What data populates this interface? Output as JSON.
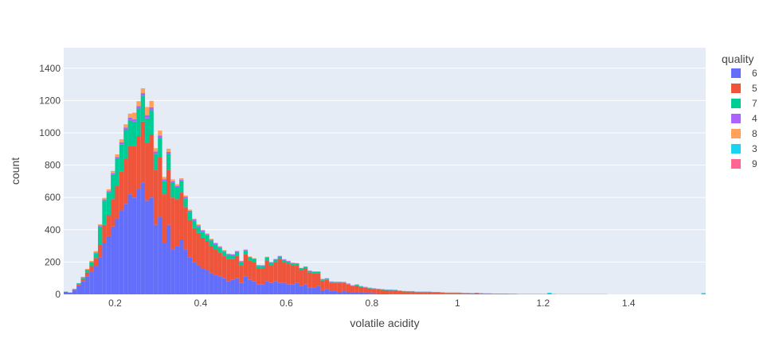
{
  "chart_data": {
    "type": "bar",
    "barmode": "stack",
    "xlabel": "volatile acidity",
    "ylabel": "count",
    "xlim": [
      0.08,
      1.58
    ],
    "ylim": [
      0,
      1527
    ],
    "bin_width": 0.01,
    "x_ticks": [
      0.2,
      0.4,
      0.6,
      0.8,
      1,
      1.2,
      1.4
    ],
    "x_tick_labels": [
      "0.2",
      "0.4",
      "0.6",
      "0.8",
      "1",
      "1.2",
      "1.4"
    ],
    "y_ticks": [
      0,
      200,
      400,
      600,
      800,
      1000,
      1200,
      1400
    ],
    "y_tick_labels": [
      "0",
      "200",
      "400",
      "600",
      "800",
      "1000",
      "1200",
      "1400"
    ],
    "grid": true,
    "plot_background": "#e5ecf6",
    "legend": {
      "title": "quality",
      "placement": "right"
    },
    "x": [
      0.08,
      0.09,
      0.1,
      0.11,
      0.12,
      0.13,
      0.14,
      0.15,
      0.16,
      0.17,
      0.18,
      0.19,
      0.2,
      0.21,
      0.22,
      0.23,
      0.24,
      0.25,
      0.26,
      0.27,
      0.28,
      0.29,
      0.3,
      0.31,
      0.32,
      0.33,
      0.34,
      0.35,
      0.36,
      0.37,
      0.38,
      0.39,
      0.4,
      0.41,
      0.42,
      0.43,
      0.44,
      0.45,
      0.46,
      0.47,
      0.48,
      0.49,
      0.5,
      0.51,
      0.52,
      0.53,
      0.54,
      0.55,
      0.56,
      0.57,
      0.58,
      0.59,
      0.6,
      0.61,
      0.62,
      0.63,
      0.64,
      0.65,
      0.66,
      0.67,
      0.68,
      0.69,
      0.7,
      0.71,
      0.72,
      0.73,
      0.74,
      0.75,
      0.76,
      0.77,
      0.78,
      0.79,
      0.8,
      0.81,
      0.82,
      0.83,
      0.84,
      0.85,
      0.86,
      0.87,
      0.88,
      0.89,
      0.9,
      0.91,
      0.92,
      0.93,
      0.94,
      0.95,
      0.96,
      0.97,
      0.98,
      0.99,
      1.0,
      1.01,
      1.02,
      1.03,
      1.04,
      1.05,
      1.06,
      1.07,
      1.08,
      1.09,
      1.1,
      1.11,
      1.12,
      1.13,
      1.14,
      1.15,
      1.16,
      1.17,
      1.18,
      1.19,
      1.2,
      1.21,
      1.22,
      1.23,
      1.24,
      1.25,
      1.26,
      1.27,
      1.28,
      1.29,
      1.3,
      1.31,
      1.32,
      1.33,
      1.34,
      1.35,
      1.36,
      1.37,
      1.38,
      1.39,
      1.4,
      1.41,
      1.42,
      1.43,
      1.44,
      1.45,
      1.46,
      1.47,
      1.48,
      1.49,
      1.5,
      1.51,
      1.52,
      1.53,
      1.54,
      1.55,
      1.56,
      1.57
    ],
    "series": [
      {
        "name": "6",
        "color": "#636efa",
        "values": [
          15,
          10,
          28,
          55,
          80,
          110,
          140,
          175,
          230,
          320,
          360,
          420,
          470,
          520,
          560,
          620,
          600,
          650,
          690,
          580,
          600,
          430,
          480,
          320,
          430,
          280,
          300,
          340,
          280,
          230,
          200,
          180,
          160,
          150,
          130,
          120,
          110,
          100,
          80,
          90,
          100,
          70,
          110,
          90,
          80,
          60,
          60,
          80,
          70,
          80,
          70,
          70,
          60,
          60,
          70,
          50,
          60,
          40,
          40,
          50,
          25,
          30,
          20,
          20,
          15,
          20,
          15,
          10,
          15,
          10,
          10,
          8,
          8,
          5,
          5,
          5,
          4,
          4,
          3,
          3,
          3,
          3,
          2,
          2,
          2,
          2,
          2,
          2,
          1,
          1,
          1,
          1,
          1,
          1,
          1,
          0,
          0,
          1,
          0,
          0,
          0,
          0,
          0,
          0,
          0,
          0,
          0,
          0,
          0,
          0,
          0,
          0,
          0,
          0,
          0,
          0,
          0,
          0,
          0,
          0,
          0,
          0,
          0,
          0,
          0,
          0,
          0,
          0,
          0,
          0,
          0,
          0,
          0,
          0,
          0,
          0,
          0,
          0,
          0,
          0,
          0,
          0,
          0,
          0,
          0,
          0,
          0,
          0,
          0,
          0
        ]
      },
      {
        "name": "5",
        "color": "#ef553b",
        "values": [
          1,
          1,
          3,
          8,
          15,
          25,
          35,
          50,
          80,
          110,
          130,
          170,
          200,
          240,
          280,
          300,
          320,
          330,
          380,
          360,
          390,
          340,
          370,
          300,
          340,
          320,
          290,
          290,
          260,
          230,
          210,
          200,
          190,
          180,
          170,
          160,
          150,
          140,
          140,
          130,
          140,
          110,
          140,
          120,
          120,
          100,
          100,
          130,
          110,
          120,
          150,
          130,
          130,
          120,
          110,
          100,
          100,
          95,
          90,
          80,
          60,
          60,
          50,
          50,
          55,
          50,
          45,
          40,
          40,
          35,
          30,
          28,
          25,
          25,
          22,
          20,
          20,
          20,
          18,
          15,
          14,
          14,
          12,
          12,
          12,
          12,
          10,
          10,
          10,
          8,
          8,
          8,
          8,
          6,
          6,
          6,
          8,
          5,
          4,
          4,
          3,
          3,
          3,
          3,
          2,
          2,
          2,
          2,
          2,
          2,
          2,
          2,
          2,
          2,
          2,
          1,
          1,
          1,
          1,
          1,
          1,
          1,
          1,
          1,
          1,
          1,
          1,
          0,
          0,
          0,
          0,
          0,
          0,
          0,
          0,
          0,
          0,
          0,
          0,
          0,
          0,
          0,
          0,
          0,
          0,
          0,
          0,
          0,
          0,
          0
        ]
      },
      {
        "name": "7",
        "color": "#00cc96",
        "values": [
          1,
          1,
          2,
          5,
          10,
          15,
          22,
          30,
          110,
          150,
          140,
          150,
          170,
          170,
          180,
          160,
          150,
          170,
          160,
          150,
          150,
          100,
          120,
          80,
          100,
          90,
          70,
          70,
          55,
          50,
          45,
          40,
          38,
          35,
          33,
          30,
          28,
          25,
          24,
          22,
          22,
          20,
          20,
          18,
          18,
          16,
          15,
          17,
          15,
          14,
          13,
          12,
          12,
          11,
          10,
          10,
          9,
          9,
          8,
          8,
          7,
          7,
          6,
          6,
          6,
          5,
          5,
          4,
          4,
          4,
          4,
          3,
          3,
          3,
          3,
          3,
          3,
          3,
          2,
          2,
          2,
          2,
          2,
          2,
          2,
          2,
          2,
          2,
          1,
          1,
          1,
          1,
          1,
          1,
          1,
          1,
          1,
          1,
          1,
          1,
          1,
          1,
          1,
          1,
          1,
          1,
          0,
          0,
          0,
          0,
          0,
          0,
          0,
          0,
          0,
          0,
          0,
          0,
          0,
          0,
          0,
          0,
          0,
          0,
          0,
          0,
          0,
          0,
          0,
          0,
          0,
          0,
          0,
          0,
          0,
          0,
          0,
          0,
          0,
          0,
          0,
          0,
          0,
          0,
          0,
          0,
          0,
          0,
          0,
          0
        ]
      },
      {
        "name": "4",
        "color": "#ab63fa",
        "values": [
          0,
          0,
          1,
          1,
          2,
          3,
          4,
          5,
          6,
          8,
          9,
          10,
          11,
          12,
          13,
          14,
          15,
          16,
          16,
          20,
          18,
          15,
          14,
          12,
          12,
          10,
          10,
          9,
          9,
          8,
          8,
          7,
          7,
          7,
          6,
          6,
          6,
          5,
          5,
          5,
          5,
          5,
          5,
          4,
          4,
          4,
          4,
          4,
          4,
          4,
          4,
          4,
          4,
          4,
          3,
          3,
          3,
          3,
          3,
          3,
          3,
          3,
          3,
          2,
          2,
          2,
          2,
          2,
          2,
          2,
          2,
          2,
          2,
          2,
          2,
          2,
          2,
          1,
          1,
          1,
          1,
          1,
          1,
          1,
          1,
          1,
          1,
          1,
          1,
          1,
          1,
          1,
          1,
          1,
          1,
          1,
          1,
          1,
          1,
          1,
          1,
          1,
          1,
          1,
          1,
          1,
          0,
          0,
          0,
          0,
          0,
          0,
          0,
          0,
          0,
          0,
          0,
          0,
          0,
          0,
          0,
          0,
          0,
          0,
          0,
          0,
          0,
          0,
          0,
          0,
          0,
          0,
          0,
          0,
          0,
          0,
          0,
          0,
          0,
          0,
          0,
          0,
          0,
          0,
          0,
          0,
          0,
          0,
          0,
          0
        ]
      },
      {
        "name": "8",
        "color": "#ffa15a",
        "values": [
          0,
          0,
          1,
          1,
          2,
          5,
          6,
          8,
          8,
          10,
          12,
          14,
          16,
          18,
          20,
          25,
          40,
          30,
          30,
          50,
          40,
          20,
          30,
          15,
          20,
          12,
          12,
          10,
          8,
          7,
          6,
          6,
          5,
          5,
          5,
          4,
          4,
          4,
          3,
          3,
          3,
          3,
          3,
          3,
          2,
          2,
          2,
          2,
          2,
          2,
          2,
          2,
          2,
          2,
          1,
          1,
          1,
          1,
          1,
          1,
          1,
          1,
          1,
          1,
          1,
          1,
          1,
          1,
          1,
          1,
          0,
          0,
          0,
          0,
          0,
          0,
          0,
          0,
          0,
          0,
          0,
          0,
          0,
          0,
          0,
          0,
          0,
          0,
          0,
          0,
          0,
          0,
          0,
          0,
          0,
          0,
          0,
          0,
          0,
          0,
          0,
          0,
          0,
          0,
          0,
          0,
          0,
          0,
          0,
          0,
          0,
          0,
          0,
          0,
          0,
          0,
          0,
          0,
          0,
          0,
          0,
          0,
          0,
          0,
          0,
          0,
          0,
          0,
          0,
          0,
          0,
          0,
          0,
          0,
          0,
          0,
          0,
          0,
          0,
          0,
          0,
          0,
          0,
          0,
          0,
          0,
          0,
          0,
          0,
          0
        ]
      },
      {
        "name": "3",
        "color": "#19d3f3",
        "values": [
          0,
          0,
          0,
          0,
          0,
          0,
          0,
          0,
          0,
          0,
          0,
          0,
          0,
          0,
          0,
          0,
          0,
          0,
          0,
          0,
          0,
          0,
          0,
          0,
          0,
          0,
          0,
          0,
          0,
          0,
          0,
          0,
          0,
          0,
          0,
          0,
          0,
          0,
          0,
          0,
          0,
          0,
          0,
          0,
          0,
          0,
          0,
          0,
          0,
          0,
          0,
          0,
          0,
          0,
          0,
          0,
          0,
          0,
          0,
          0,
          0,
          0,
          0,
          0,
          0,
          0,
          0,
          0,
          0,
          0,
          0,
          0,
          0,
          0,
          0,
          0,
          0,
          0,
          0,
          0,
          0,
          0,
          0,
          0,
          0,
          0,
          0,
          0,
          0,
          0,
          0,
          0,
          0,
          0,
          0,
          0,
          0,
          0,
          0,
          0,
          0,
          0,
          0,
          0,
          0,
          0,
          0,
          0,
          0,
          0,
          0,
          0,
          0,
          8,
          0,
          0,
          0,
          0,
          0,
          0,
          0,
          0,
          0,
          0,
          0,
          0,
          0,
          0,
          0,
          0,
          0,
          0,
          0,
          0,
          0,
          0,
          0,
          0,
          0,
          0,
          0,
          0,
          0,
          0,
          0,
          0,
          0,
          0,
          0,
          8
        ]
      },
      {
        "name": "9",
        "color": "#ff6692",
        "values": [
          0,
          0,
          0,
          0,
          0,
          0,
          0,
          0,
          0,
          0,
          0,
          0,
          0,
          0,
          0,
          0,
          0,
          0,
          0,
          0,
          0,
          0,
          0,
          0,
          0,
          0,
          0,
          0,
          0,
          0,
          0,
          0,
          0,
          0,
          0,
          0,
          0,
          0,
          0,
          0,
          0,
          0,
          0,
          0,
          0,
          0,
          0,
          0,
          0,
          0,
          0,
          0,
          0,
          0,
          0,
          0,
          0,
          0,
          0,
          0,
          0,
          0,
          0,
          0,
          0,
          0,
          0,
          0,
          0,
          0,
          0,
          0,
          0,
          0,
          0,
          0,
          0,
          0,
          0,
          0,
          0,
          0,
          0,
          0,
          0,
          0,
          0,
          0,
          0,
          0,
          0,
          0,
          0,
          0,
          0,
          0,
          0,
          0,
          0,
          0,
          0,
          0,
          0,
          0,
          0,
          0,
          0,
          0,
          0,
          0,
          0,
          0,
          0,
          0,
          0,
          0,
          0,
          0,
          0,
          0,
          0,
          0,
          0,
          0,
          0,
          0,
          0,
          0,
          0,
          0,
          0,
          0,
          0,
          0,
          0,
          0,
          0,
          0,
          0,
          0,
          0,
          0,
          0,
          0,
          0,
          0,
          0,
          0,
          0,
          0
        ]
      }
    ]
  }
}
